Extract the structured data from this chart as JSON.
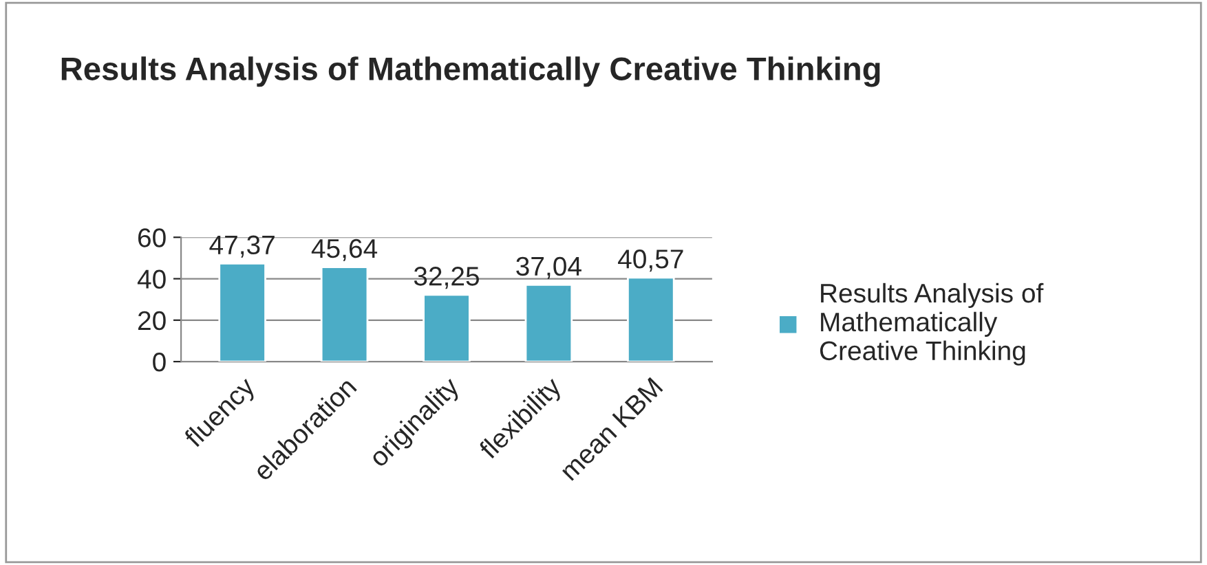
{
  "chart_data": {
    "type": "bar",
    "title": "Results Analysis of Mathematically Creative Thinking",
    "categories": [
      "fluency",
      "elaboration",
      "originality",
      "flexibility",
      "mean KBM"
    ],
    "series": [
      {
        "name": "Results Analysis of Mathematically Creative Thinking",
        "color": "#4bacc6",
        "values": [
          47.37,
          45.64,
          32.25,
          37.04,
          40.57
        ]
      }
    ],
    "value_labels": [
      "47,37",
      "45,64",
      "32,25",
      "37,04",
      "40,57"
    ],
    "ylim": [
      0,
      60
    ],
    "yticks": [
      0,
      20,
      40,
      60
    ],
    "grid": "y",
    "legend": "right"
  }
}
